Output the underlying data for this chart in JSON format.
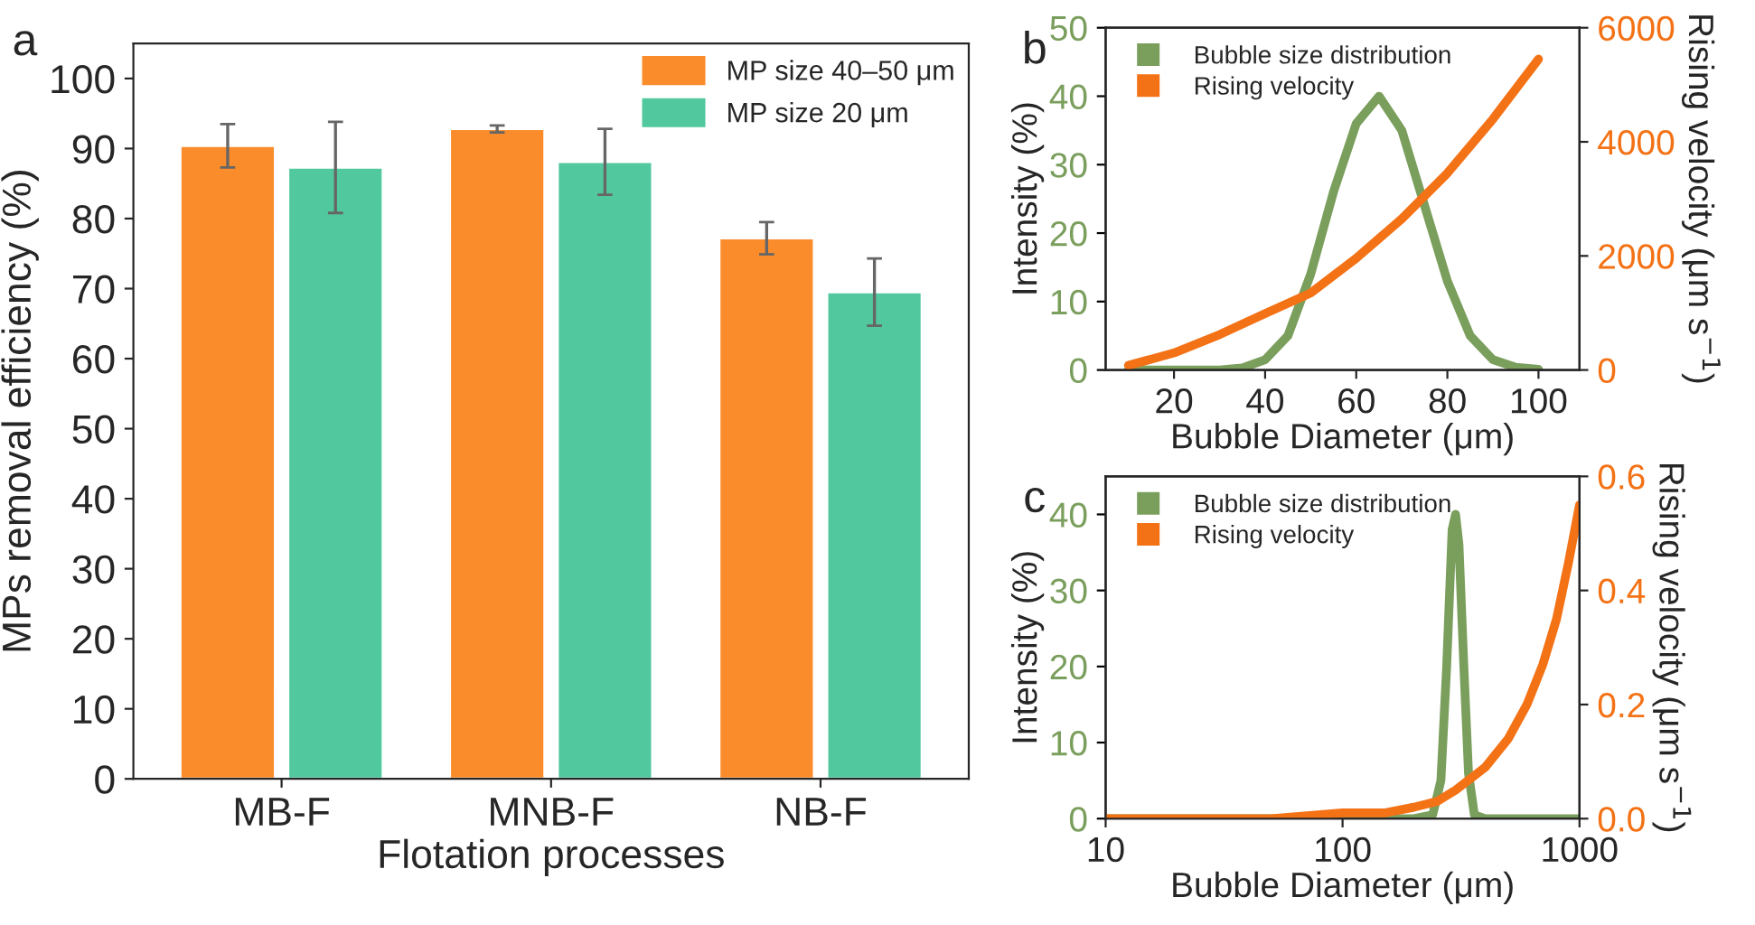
{
  "chart_data": [
    {
      "type": "bar",
      "title": "a",
      "xlabel": "Flotation processes",
      "ylabel": "MPs removal efficiency (%)",
      "categories": [
        "MB-F",
        "MNB-F",
        "NB-F"
      ],
      "series": [
        {
          "name": "MP size 40–50 μm",
          "color": "#fb8c2c",
          "values": [
            90.4,
            92.8,
            77.2
          ],
          "errors": [
            3.1,
            0.5,
            2.3
          ]
        },
        {
          "name": "MP size 20 μm",
          "color": "#52c89e",
          "values": [
            87.3,
            88.1,
            69.5
          ],
          "errors": [
            6.5,
            4.7,
            4.8
          ]
        }
      ],
      "ylim": [
        0,
        105
      ],
      "yticks": [
        0,
        10,
        20,
        30,
        40,
        50,
        60,
        70,
        80,
        90,
        100
      ],
      "legend": "top right",
      "grid": false
    },
    {
      "type": "line",
      "title": "b",
      "xlabel": "Bubble Diameter (μm)",
      "ylabel": "Intensity (%)",
      "y2label": "Rising velocity (μm s$^{−1}$)",
      "series": [
        {
          "name": "Bubble size distribution",
          "color": "#7a9e5c",
          "x": [
            10,
            20,
            30,
            35,
            40,
            45,
            50,
            55,
            60,
            65,
            70,
            75,
            80,
            85,
            90,
            95,
            100
          ],
          "values": [
            0,
            0,
            0,
            0.3,
            1.5,
            5,
            14,
            26,
            36,
            40,
            35,
            24,
            13,
            5,
            1.5,
            0.4,
            0.1
          ]
        },
        {
          "name": "Rising velocity",
          "color": "#f47216",
          "axis": "y2",
          "x": [
            10,
            20,
            30,
            40,
            50,
            60,
            70,
            80,
            90,
            100
          ],
          "values": [
            80,
            300,
            620,
            990,
            1350,
            1960,
            2650,
            3450,
            4400,
            5450
          ]
        }
      ],
      "xlim": [
        5,
        109
      ],
      "xticks": [
        20,
        40,
        60,
        80,
        100
      ],
      "ylim": [
        0,
        50
      ],
      "yticks": [
        0,
        10,
        20,
        30,
        40,
        50
      ],
      "y2lim": [
        0,
        6000
      ],
      "y2ticks": [
        0,
        2000,
        4000,
        6000
      ],
      "legend": "top left",
      "grid": false
    },
    {
      "type": "line",
      "title": "c",
      "xlabel": "Bubble Diameter (μm)",
      "ylabel": "Intensity (%)",
      "y2label": "Rising velocity (μm s$^{−1}$)",
      "log": "x",
      "series": [
        {
          "name": "Bubble size distribution",
          "color": "#7a9e5c",
          "x": [
            10,
            100,
            200,
            240,
            260,
            275,
            290,
            300,
            310,
            325,
            340,
            360,
            400,
            1000
          ],
          "values": [
            0,
            0,
            0,
            0.5,
            5,
            20,
            38,
            40,
            36,
            20,
            6,
            0.5,
            0,
            0
          ]
        },
        {
          "name": "Rising velocity",
          "color": "#f47216",
          "axis": "y2",
          "x": [
            10,
            50,
            100,
            150,
            200,
            250,
            300,
            400,
            500,
            600,
            700,
            800,
            900,
            1000
          ],
          "values": [
            0,
            0,
            0.01,
            0.01,
            0.02,
            0.03,
            0.05,
            0.09,
            0.14,
            0.2,
            0.27,
            0.35,
            0.45,
            0.55
          ]
        }
      ],
      "xlim": [
        10,
        1000
      ],
      "xticks": [
        10,
        100,
        1000
      ],
      "ylim": [
        0,
        45
      ],
      "yticks": [
        0,
        10,
        20,
        30,
        40
      ],
      "y2lim": [
        0,
        0.6
      ],
      "y2ticks": [
        {
          "value": 0,
          "label": "0.0"
        },
        0.2,
        0.4,
        0.6
      ],
      "legend": "top left",
      "grid": false
    }
  ]
}
